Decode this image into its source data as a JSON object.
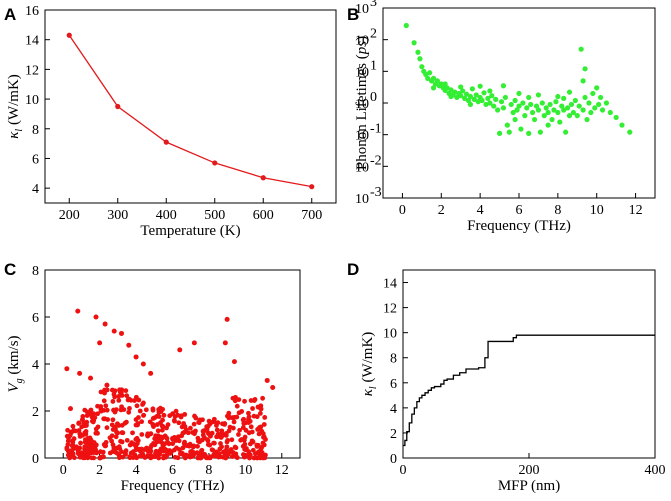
{
  "chart_data": [
    {
      "panel": "A",
      "type": "line",
      "x": [
        200,
        300,
        400,
        500,
        600,
        700
      ],
      "y": [
        14.3,
        9.5,
        7.1,
        5.7,
        4.7,
        4.1
      ],
      "xlabel": "Temperature (K)",
      "ylabel_symbol": "κ",
      "ylabel_sub": "l",
      "ylabel_unit": "(W/mK)",
      "xlim": [
        150,
        750
      ],
      "ylim": [
        3,
        16
      ],
      "xticks": [
        200,
        300,
        400,
        500,
        600,
        700
      ],
      "yticks": [
        4,
        6,
        8,
        10,
        12,
        14,
        16
      ],
      "color": "#e31a1c"
    },
    {
      "panel": "B",
      "type": "scatter",
      "xlabel": "Frequency (THz)",
      "ylabel_pre": "Phonon Lifetimes (",
      "ylabel_ital": "ps",
      "ylabel_post": ")",
      "xlim": [
        -1,
        13
      ],
      "ylim_log10": [
        -3,
        3
      ],
      "xticks": [
        0,
        2,
        4,
        6,
        8,
        10,
        12
      ],
      "yticks_log10": [
        -3,
        -2,
        -1,
        0,
        1,
        2,
        3
      ],
      "ytick_base": "10",
      "color": "#33ee33",
      "points": [
        [
          0.2,
          280
        ],
        [
          0.6,
          80
        ],
        [
          0.8,
          40
        ],
        [
          0.9,
          25
        ],
        [
          1.0,
          14
        ],
        [
          1.1,
          10
        ],
        [
          1.2,
          8
        ],
        [
          1.3,
          6
        ],
        [
          1.4,
          9
        ],
        [
          1.5,
          5
        ],
        [
          1.6,
          6
        ],
        [
          1.7,
          4
        ],
        [
          1.8,
          5
        ],
        [
          1.9,
          3.5
        ],
        [
          2.0,
          4
        ],
        [
          2.1,
          3
        ],
        [
          2.2,
          2.5
        ],
        [
          2.3,
          3
        ],
        [
          2.4,
          2
        ],
        [
          2.5,
          2.6
        ],
        [
          2.6,
          1.8
        ],
        [
          2.7,
          2.2
        ],
        [
          2.8,
          1.5
        ],
        [
          2.9,
          2
        ],
        [
          3.0,
          1.7
        ],
        [
          3.1,
          2.4
        ],
        [
          3.2,
          1.4
        ],
        [
          3.3,
          1.9
        ],
        [
          3.4,
          1.2
        ],
        [
          3.5,
          1.6
        ],
        [
          3.6,
          2.8
        ],
        [
          3.7,
          1.3
        ],
        [
          3.8,
          1.8
        ],
        [
          3.9,
          1.1
        ],
        [
          4.0,
          1.5
        ],
        [
          4.1,
          1.2
        ],
        [
          4.2,
          2.1
        ],
        [
          4.3,
          0.9
        ],
        [
          4.4,
          1.4
        ],
        [
          4.5,
          1.0
        ],
        [
          4.6,
          1.7
        ],
        [
          4.7,
          0.8
        ],
        [
          4.8,
          1.3
        ],
        [
          4.9,
          0.6
        ],
        [
          5.0,
          0.11
        ],
        [
          5.1,
          1.1
        ],
        [
          5.2,
          0.7
        ],
        [
          5.3,
          1.5
        ],
        [
          5.4,
          0.2
        ],
        [
          5.5,
          0.12
        ],
        [
          5.6,
          0.9
        ],
        [
          5.7,
          0.5
        ],
        [
          5.8,
          1.2
        ],
        [
          5.9,
          0.6
        ],
        [
          6.0,
          0.8
        ],
        [
          6.1,
          0.15
        ],
        [
          6.2,
          1.0
        ],
        [
          6.3,
          0.4
        ],
        [
          6.4,
          0.7
        ],
        [
          6.5,
          0.11
        ],
        [
          6.6,
          0.9
        ],
        [
          6.7,
          0.5
        ],
        [
          6.8,
          0.3
        ],
        [
          6.9,
          0.8
        ],
        [
          7.0,
          0.6
        ],
        [
          7.1,
          0.12
        ],
        [
          7.2,
          1.0
        ],
        [
          7.3,
          0.4
        ],
        [
          7.4,
          0.7
        ],
        [
          7.5,
          0.5
        ],
        [
          7.6,
          0.9
        ],
        [
          7.7,
          0.3
        ],
        [
          7.8,
          0.6
        ],
        [
          7.9,
          1.1
        ],
        [
          8.0,
          0.5
        ],
        [
          8.1,
          0.25
        ],
        [
          8.2,
          0.8
        ],
        [
          8.3,
          0.6
        ],
        [
          8.4,
          0.12
        ],
        [
          8.5,
          0.7
        ],
        [
          8.6,
          0.4
        ],
        [
          8.7,
          0.9
        ],
        [
          8.8,
          0.5
        ],
        [
          8.9,
          1.2
        ],
        [
          9.0,
          0.4
        ],
        [
          9.1,
          0.8
        ],
        [
          9.2,
          50
        ],
        [
          9.3,
          0.6
        ],
        [
          9.4,
          1.5
        ],
        [
          9.5,
          0.3
        ],
        [
          9.6,
          1.0
        ],
        [
          9.7,
          0.5
        ],
        [
          9.8,
          2.0
        ],
        [
          9.9,
          0.7
        ],
        [
          10.0,
          3.0
        ],
        [
          10.1,
          0.9
        ],
        [
          10.2,
          1.5
        ],
        [
          10.3,
          0.6
        ],
        [
          10.5,
          1.0
        ],
        [
          10.7,
          0.5
        ],
        [
          11.0,
          0.35
        ],
        [
          11.3,
          0.2
        ],
        [
          11.7,
          0.12
        ],
        [
          2.2,
          4
        ],
        [
          3.0,
          3.2
        ],
        [
          4.5,
          2.4
        ],
        [
          5.2,
          3.5
        ],
        [
          6.0,
          2.0
        ],
        [
          7.0,
          1.8
        ],
        [
          8.0,
          1.6
        ],
        [
          8.6,
          2.2
        ],
        [
          3.5,
          0.9
        ],
        [
          4.0,
          3.4
        ],
        [
          5.8,
          0.3
        ],
        [
          9.4,
          12
        ],
        [
          9.3,
          5
        ],
        [
          1.6,
          3
        ],
        [
          2.5,
          1.6
        ],
        [
          6.5,
          1.5
        ],
        [
          7.5,
          0.2
        ],
        [
          8.3,
          1.4
        ]
      ]
    },
    {
      "panel": "C",
      "type": "scatter",
      "xlabel": "Frequency (THz)",
      "ylabel_symbol": "V",
      "ylabel_sub": "g",
      "ylabel_unit": "(km/s)",
      "xlim": [
        -1,
        13
      ],
      "ylim": [
        0,
        8
      ],
      "xticks": [
        0,
        2,
        4,
        6,
        8,
        10,
        12
      ],
      "yticks": [
        0,
        2,
        4,
        6,
        8
      ],
      "color": "#ee1111",
      "points": [
        [
          0.8,
          6.25
        ],
        [
          1.8,
          6.0
        ],
        [
          2.3,
          5.7
        ],
        [
          2.8,
          5.4
        ],
        [
          3.2,
          5.3
        ],
        [
          3.6,
          4.8
        ],
        [
          4.0,
          4.3
        ],
        [
          4.4,
          4.0
        ],
        [
          4.8,
          3.6
        ],
        [
          2.0,
          4.9
        ],
        [
          9.0,
          5.9
        ],
        [
          7.2,
          4.9
        ],
        [
          8.9,
          4.9
        ],
        [
          9.4,
          4.1
        ],
        [
          0.2,
          3.8
        ],
        [
          0.9,
          3.6
        ],
        [
          1.5,
          3.4
        ],
        [
          2.4,
          3.1
        ],
        [
          3.1,
          2.9
        ],
        [
          6.4,
          4.6
        ],
        [
          0.4,
          2.1
        ],
        [
          11.2,
          3.3
        ],
        [
          11.5,
          3.0
        ]
      ]
    },
    {
      "panel": "D",
      "type": "line",
      "xlabel": "MFP (nm)",
      "ylabel_symbol": "κ",
      "ylabel_sub": "l",
      "ylabel_unit": "(W/mK)",
      "xlim": [
        0,
        400
      ],
      "ylim": [
        0,
        15
      ],
      "xticks": [
        0,
        200,
        400
      ],
      "yticks": [
        0,
        2,
        4,
        6,
        8,
        10,
        12,
        14
      ],
      "color": "#000000",
      "x": [
        0,
        3,
        6,
        10,
        14,
        18,
        22,
        26,
        30,
        35,
        40,
        45,
        50,
        55,
        60,
        65,
        70,
        75,
        80,
        90,
        100,
        110,
        120,
        130,
        135,
        140,
        160,
        170,
        175,
        180,
        400
      ],
      "y": [
        1.0,
        1.4,
        2.1,
        2.8,
        3.5,
        4.0,
        4.5,
        4.8,
        5.0,
        5.2,
        5.4,
        5.6,
        5.7,
        5.7,
        5.9,
        6.2,
        6.3,
        6.3,
        6.6,
        6.8,
        7.1,
        7.1,
        7.2,
        8.0,
        9.3,
        9.3,
        9.3,
        9.3,
        9.6,
        9.8,
        9.8
      ]
    }
  ]
}
